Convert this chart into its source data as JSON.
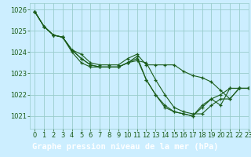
{
  "xlabel": "Graphe pression niveau de la mer (hPa)",
  "ylim": [
    1020.4,
    1026.3
  ],
  "xlim": [
    -0.5,
    23
  ],
  "yticks": [
    1021,
    1022,
    1023,
    1024,
    1025,
    1026
  ],
  "xticks": [
    0,
    1,
    2,
    3,
    4,
    5,
    6,
    7,
    8,
    9,
    10,
    11,
    12,
    13,
    14,
    15,
    16,
    17,
    18,
    19,
    20,
    21,
    22,
    23
  ],
  "bg_color": "#cceeff",
  "grid_color": "#99cccc",
  "line_color": "#1a5c1a",
  "marker": "+",
  "lines": [
    [
      1025.9,
      1025.2,
      1024.8,
      1024.7,
      1024.1,
      1023.9,
      1023.5,
      1023.4,
      1023.4,
      1023.4,
      1023.7,
      1023.9,
      1023.4,
      1023.4,
      1023.4,
      1023.4,
      1023.1,
      1022.9,
      1022.8,
      1022.6,
      1022.2,
      1021.8,
      1022.3,
      1022.3
    ],
    [
      1025.9,
      1025.2,
      1024.8,
      1024.7,
      1024.1,
      1023.7,
      1023.4,
      1023.3,
      1023.3,
      1023.3,
      1023.5,
      1023.6,
      1023.5,
      1022.7,
      1022.0,
      1021.4,
      1021.2,
      1021.1,
      1021.1,
      1021.5,
      1021.8,
      1021.8,
      1022.3,
      1022.3
    ],
    [
      1025.9,
      1025.2,
      1024.8,
      1024.7,
      1024.1,
      1023.7,
      1023.4,
      1023.3,
      1023.3,
      1023.3,
      1023.5,
      1023.7,
      1022.7,
      1022.0,
      1021.4,
      1021.2,
      1021.1,
      1021.0,
      1021.5,
      1021.8,
      1022.0,
      1022.3,
      1022.3,
      1022.3
    ],
    [
      1025.9,
      1025.2,
      1024.8,
      1024.7,
      1024.0,
      1023.5,
      1023.3,
      1023.3,
      1023.3,
      1023.3,
      1023.5,
      1023.8,
      1022.7,
      1022.0,
      1021.5,
      1021.2,
      1021.1,
      1021.0,
      1021.4,
      1021.8,
      1021.5,
      1022.3,
      1022.3,
      1022.3
    ]
  ],
  "title_bg": "#4a9a4a",
  "title_fontsize": 7.5,
  "tick_fontsize": 6.0,
  "label_color": "#1a5c1a"
}
